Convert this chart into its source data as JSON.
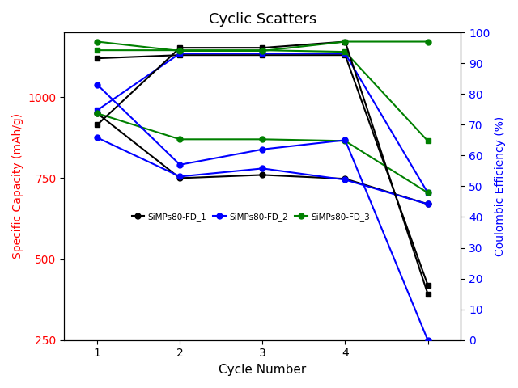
{
  "title": "Cyclic Scatters",
  "xlabel": "Cycle Number",
  "ylabel_left": "Specific Capacity (mAh/g)",
  "ylabel_right": "Coulombic Efficiency (%)",
  "cycles_cap": [
    1,
    2,
    3,
    4,
    5
  ],
  "cycles_ce": [
    1,
    2,
    3,
    4,
    5
  ],
  "fd1_charge": [
    1120,
    1130,
    1130,
    1130,
    420
  ],
  "fd1_discharge": [
    950,
    750,
    760,
    748,
    670
  ],
  "fd2_charge": [
    960,
    1135,
    1135,
    1135,
    705
  ],
  "fd2_discharge": [
    875,
    755,
    780,
    745,
    670
  ],
  "fd3_charge": [
    1145,
    1145,
    1145,
    1140,
    865
  ],
  "fd3_discharge": [
    950,
    870,
    870,
    865,
    705
  ],
  "fd1_ce": [
    70,
    95,
    95,
    97,
    15
  ],
  "fd2_ce": [
    83,
    57,
    62,
    65,
    0
  ],
  "fd3_ce": [
    97,
    94,
    94,
    97,
    97
  ],
  "xlim": [
    0.6,
    5.4
  ],
  "ylim_left": [
    250,
    1200
  ],
  "ylim_right": [
    0,
    100
  ],
  "yticks_left": [
    250,
    500,
    750,
    1000
  ],
  "yticks_right": [
    0,
    10,
    20,
    30,
    40,
    50,
    60,
    70,
    80,
    90,
    100
  ],
  "xticks": [
    1,
    2,
    3,
    4,
    5
  ],
  "xticklabels": [
    "1",
    "2",
    "3",
    "4",
    ""
  ],
  "color_black": "#000000",
  "color_blue": "#0000ff",
  "color_green": "#008000",
  "linewidth": 1.5,
  "markersize": 5,
  "legend_labels": [
    "SiMPs80-FD_1",
    "SiMPs80-FD_2",
    "SiMPs80-FD_3"
  ],
  "legend_colors": [
    "#000000",
    "#0000ff",
    "#008000"
  ]
}
